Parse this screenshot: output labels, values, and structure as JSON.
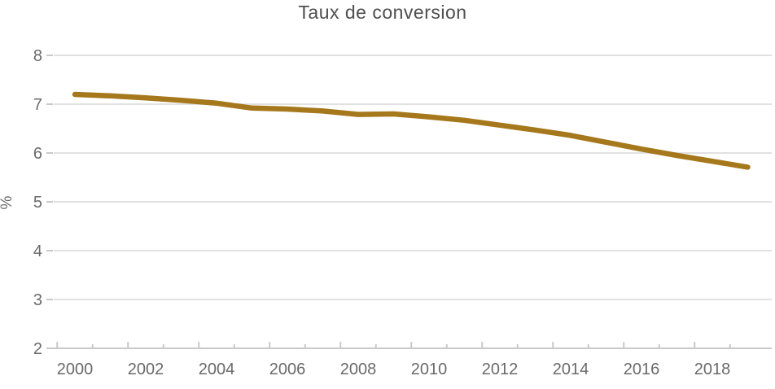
{
  "title": "Taux de conversion",
  "chart_data": {
    "type": "line",
    "title": "Taux de conversion",
    "xlabel": "",
    "ylabel": "%",
    "x": [
      2000,
      2001,
      2002,
      2003,
      2004,
      2005,
      2006,
      2007,
      2008,
      2009,
      2010,
      2011,
      2012,
      2013,
      2014,
      2015,
      2016,
      2017,
      2018,
      2019
    ],
    "series": [
      {
        "name": "Taux de conversion",
        "values": [
          7.2,
          7.17,
          7.13,
          7.08,
          7.02,
          6.92,
          6.9,
          6.86,
          6.79,
          6.8,
          6.74,
          6.67,
          6.57,
          6.47,
          6.36,
          6.22,
          6.08,
          5.95,
          5.83,
          5.71
        ]
      }
    ],
    "ylim": [
      2,
      8
    ],
    "yticks": [
      2,
      3,
      4,
      5,
      6,
      7,
      8
    ],
    "xticks": [
      2000,
      2002,
      2004,
      2006,
      2008,
      2010,
      2012,
      2014,
      2016,
      2018
    ],
    "grid": "horizontal",
    "legend": "none",
    "line_color": "#a5781b",
    "grid_color": "#e1e1e1",
    "tick_color": "#c9c9c9",
    "text_color": "#6a6a6a",
    "title_color": "#4f4f4f"
  }
}
